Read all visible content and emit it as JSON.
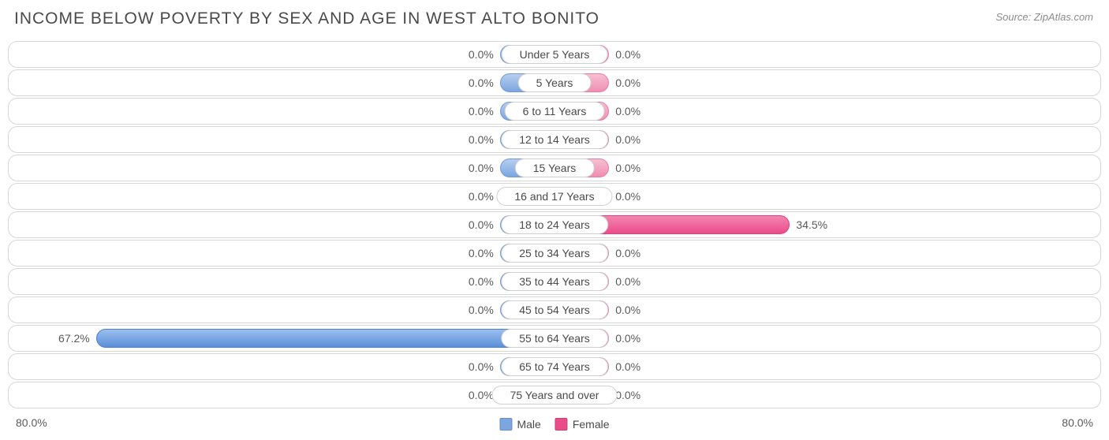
{
  "title": "INCOME BELOW POVERTY BY SEX AND AGE IN WEST ALTO BONITO",
  "source": "Source: ZipAtlas.com",
  "chart": {
    "type": "population-pyramid-bar",
    "axis_max": 80.0,
    "axis_label_left": "80.0%",
    "axis_label_right": "80.0%",
    "min_bar_pct": 10.0,
    "background_color": "#ffffff",
    "row_border_color": "#d6d6d6",
    "male_color": "#7ba6e0",
    "male_highlight_color": "#5c8fd9",
    "female_color": "#ef8db1",
    "female_highlight_color": "#ea4c8a",
    "text_color": "#5a5a5a",
    "title_color": "#4a4a4a",
    "title_fontsize": 21,
    "label_fontsize": 14,
    "legend": [
      {
        "label": "Male",
        "color": "#7ba6e0"
      },
      {
        "label": "Female",
        "color": "#ea4c8a"
      }
    ],
    "rows": [
      {
        "category": "Under 5 Years",
        "male": 0.0,
        "female": 0.0,
        "male_label": "0.0%",
        "female_label": "0.0%"
      },
      {
        "category": "5 Years",
        "male": 0.0,
        "female": 0.0,
        "male_label": "0.0%",
        "female_label": "0.0%"
      },
      {
        "category": "6 to 11 Years",
        "male": 0.0,
        "female": 0.0,
        "male_label": "0.0%",
        "female_label": "0.0%"
      },
      {
        "category": "12 to 14 Years",
        "male": 0.0,
        "female": 0.0,
        "male_label": "0.0%",
        "female_label": "0.0%"
      },
      {
        "category": "15 Years",
        "male": 0.0,
        "female": 0.0,
        "male_label": "0.0%",
        "female_label": "0.0%"
      },
      {
        "category": "16 and 17 Years",
        "male": 0.0,
        "female": 0.0,
        "male_label": "0.0%",
        "female_label": "0.0%"
      },
      {
        "category": "18 to 24 Years",
        "male": 0.0,
        "female": 34.5,
        "male_label": "0.0%",
        "female_label": "34.5%"
      },
      {
        "category": "25 to 34 Years",
        "male": 0.0,
        "female": 0.0,
        "male_label": "0.0%",
        "female_label": "0.0%"
      },
      {
        "category": "35 to 44 Years",
        "male": 0.0,
        "female": 0.0,
        "male_label": "0.0%",
        "female_label": "0.0%"
      },
      {
        "category": "45 to 54 Years",
        "male": 0.0,
        "female": 0.0,
        "male_label": "0.0%",
        "female_label": "0.0%"
      },
      {
        "category": "55 to 64 Years",
        "male": 67.2,
        "female": 0.0,
        "male_label": "67.2%",
        "female_label": "0.0%"
      },
      {
        "category": "65 to 74 Years",
        "male": 0.0,
        "female": 0.0,
        "male_label": "0.0%",
        "female_label": "0.0%"
      },
      {
        "category": "75 Years and over",
        "male": 0.0,
        "female": 0.0,
        "male_label": "0.0%",
        "female_label": "0.0%"
      }
    ]
  }
}
